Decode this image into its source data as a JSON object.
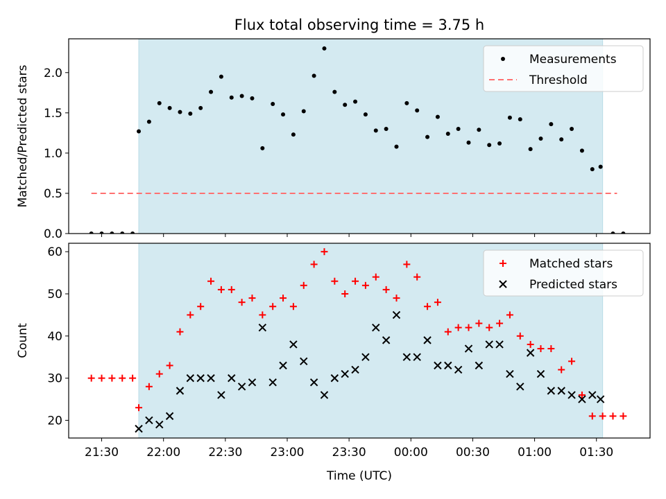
{
  "title": "Flux total observing time = 3.75 h",
  "xlabel": "Time (UTC)",
  "colors": {
    "observing_span": "#d4eaf1",
    "measurement": "#000000",
    "threshold": "#ff7070",
    "matched": "#ff0000",
    "predicted": "#000000"
  },
  "chart_data": [
    {
      "type": "scatter",
      "ylabel": "Matched/Predicted stars",
      "ylim": [
        0,
        2.42
      ],
      "yticks": [
        "0.0",
        "0.5",
        "1.0",
        "1.5",
        "2.0"
      ],
      "ytick_values": [
        0,
        0.5,
        1.0,
        1.5,
        2.0
      ],
      "xlim": [
        "21:14",
        "01:56"
      ],
      "shaded_interval": [
        "21:48",
        "01:33"
      ],
      "legend_position": "top-right",
      "series": [
        {
          "name": "Measurements",
          "marker": "dot",
          "x": [
            "21:25",
            "21:30",
            "21:35",
            "21:40",
            "21:45",
            "21:48",
            "21:53",
            "21:58",
            "22:03",
            "22:08",
            "22:13",
            "22:18",
            "22:23",
            "22:28",
            "22:33",
            "22:38",
            "22:43",
            "22:48",
            "22:53",
            "22:58",
            "23:03",
            "23:08",
            "23:13",
            "23:18",
            "23:23",
            "23:28",
            "23:33",
            "23:38",
            "23:43",
            "23:48",
            "23:53",
            "23:58",
            "00:03",
            "00:08",
            "00:13",
            "00:18",
            "00:23",
            "00:28",
            "00:33",
            "00:38",
            "00:43",
            "00:48",
            "00:53",
            "00:58",
            "01:03",
            "01:08",
            "01:13",
            "01:18",
            "01:23",
            "01:28",
            "01:32",
            "01:38",
            "01:43"
          ],
          "y": [
            0,
            0,
            0,
            0,
            0,
            1.27,
            1.39,
            1.62,
            1.56,
            1.51,
            1.49,
            1.56,
            1.76,
            1.95,
            1.69,
            1.71,
            1.68,
            1.06,
            1.61,
            1.48,
            1.23,
            1.52,
            1.96,
            2.3,
            1.76,
            1.6,
            1.64,
            1.48,
            1.28,
            1.3,
            1.08,
            1.62,
            1.53,
            1.2,
            1.45,
            1.24,
            1.3,
            1.13,
            1.29,
            1.1,
            1.12,
            1.44,
            1.42,
            1.05,
            1.18,
            1.36,
            1.17,
            1.3,
            1.03,
            0.8,
            0.83,
            0,
            0
          ]
        },
        {
          "name": "Threshold",
          "style": "dashed",
          "x": [
            "21:25",
            "01:40"
          ],
          "y": [
            0.5,
            0.5
          ]
        }
      ]
    },
    {
      "type": "scatter",
      "ylabel": "Count",
      "ylim": [
        15.8,
        62
      ],
      "yticks": [
        "20",
        "30",
        "40",
        "50",
        "60"
      ],
      "ytick_values": [
        20,
        30,
        40,
        50,
        60
      ],
      "xlim": [
        "21:14",
        "01:56"
      ],
      "xticks": [
        "21:30",
        "22:00",
        "22:30",
        "23:00",
        "23:30",
        "00:00",
        "00:30",
        "01:00",
        "01:30"
      ],
      "xtick_minutes": [
        1290,
        1320,
        1350,
        1380,
        1410,
        1440,
        1470,
        1500,
        1530
      ],
      "shaded_interval": [
        "21:48",
        "01:33"
      ],
      "legend_position": "top-right",
      "series": [
        {
          "name": "Matched stars",
          "marker": "plus",
          "x": [
            "21:25",
            "21:30",
            "21:35",
            "21:40",
            "21:45",
            "21:48",
            "21:53",
            "21:58",
            "22:03",
            "22:08",
            "22:13",
            "22:18",
            "22:23",
            "22:28",
            "22:33",
            "22:38",
            "22:43",
            "22:48",
            "22:53",
            "22:58",
            "23:03",
            "23:08",
            "23:13",
            "23:18",
            "23:23",
            "23:28",
            "23:33",
            "23:38",
            "23:43",
            "23:48",
            "23:53",
            "23:58",
            "00:03",
            "00:08",
            "00:13",
            "00:18",
            "00:23",
            "00:28",
            "00:33",
            "00:38",
            "00:43",
            "00:48",
            "00:53",
            "00:58",
            "01:03",
            "01:08",
            "01:13",
            "01:18",
            "01:23",
            "01:28",
            "01:33",
            "01:38",
            "01:43"
          ],
          "y": [
            30,
            30,
            30,
            30,
            30,
            23,
            28,
            31,
            33,
            41,
            45,
            47,
            53,
            51,
            51,
            48,
            49,
            45,
            47,
            49,
            47,
            52,
            57,
            60,
            53,
            50,
            53,
            52,
            54,
            51,
            49,
            57,
            54,
            47,
            48,
            41,
            42,
            42,
            43,
            42,
            43,
            45,
            40,
            38,
            37,
            37,
            32,
            34,
            26,
            21,
            21,
            21,
            21
          ]
        },
        {
          "name": "Predicted stars",
          "marker": "x",
          "x": [
            "21:48",
            "21:53",
            "21:58",
            "22:03",
            "22:08",
            "22:13",
            "22:18",
            "22:23",
            "22:28",
            "22:33",
            "22:38",
            "22:43",
            "22:48",
            "22:53",
            "22:58",
            "23:03",
            "23:08",
            "23:13",
            "23:18",
            "23:23",
            "23:28",
            "23:33",
            "23:38",
            "23:43",
            "23:48",
            "23:53",
            "23:58",
            "00:03",
            "00:08",
            "00:13",
            "00:18",
            "00:23",
            "00:28",
            "00:33",
            "00:38",
            "00:43",
            "00:48",
            "00:53",
            "00:58",
            "01:03",
            "01:08",
            "01:13",
            "01:18",
            "01:23",
            "01:28",
            "01:32"
          ],
          "y": [
            18,
            20,
            19,
            21,
            27,
            30,
            30,
            30,
            26,
            30,
            28,
            29,
            42,
            29,
            33,
            38,
            34,
            29,
            26,
            30,
            31,
            32,
            35,
            42,
            39,
            45,
            35,
            35,
            39,
            33,
            33,
            32,
            37,
            33,
            38,
            38,
            31,
            28,
            36,
            31,
            27,
            27,
            26,
            25,
            26,
            25
          ]
        }
      ]
    }
  ]
}
